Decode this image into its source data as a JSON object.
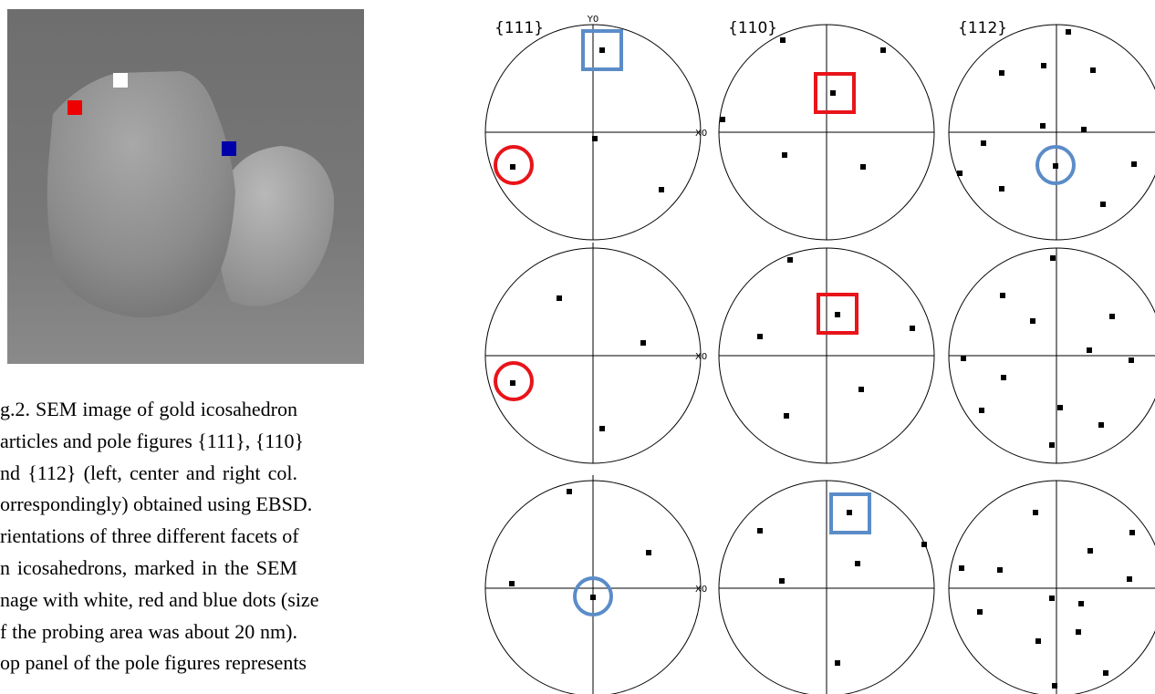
{
  "figure": {
    "column_labels": [
      "{111}",
      "{110}",
      "{112}"
    ],
    "axis_labels": {
      "y": "Y0",
      "x": "X0"
    }
  },
  "caption": {
    "lines": [
      "g.2. SEM image of gold icosahedron",
      "articles and pole figures {111}, {110}",
      "nd {112} (left, center and right col.",
      "orrespondingly) obtained using EBSD.",
      "rientations of three different facets of",
      "n icosahedrons, marked in the SEM",
      "nage with white, red and blue dots (size",
      "f the probing area was about 20 nm).",
      "op panel of the  pole figures represents"
    ]
  }
}
